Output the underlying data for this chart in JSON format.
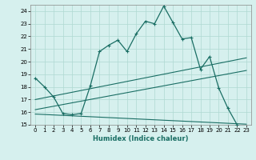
{
  "xlabel": "Humidex (Indice chaleur)",
  "background_color": "#d6f0ee",
  "grid_color": "#afd8d2",
  "line_color": "#1a6e64",
  "xlim": [
    -0.5,
    23.5
  ],
  "ylim": [
    15,
    24.5
  ],
  "yticks": [
    15,
    16,
    17,
    18,
    19,
    20,
    21,
    22,
    23,
    24
  ],
  "xticks": [
    0,
    1,
    2,
    3,
    4,
    5,
    6,
    7,
    8,
    9,
    10,
    11,
    12,
    13,
    14,
    15,
    16,
    17,
    18,
    19,
    20,
    21,
    22,
    23
  ],
  "main_x": [
    0,
    1,
    2,
    3,
    4,
    5,
    6,
    7,
    8,
    9,
    10,
    11,
    12,
    13,
    14,
    15,
    16,
    17,
    18,
    19,
    20,
    21,
    22
  ],
  "main_y": [
    18.7,
    18.0,
    17.2,
    15.9,
    15.8,
    15.9,
    18.1,
    20.8,
    21.3,
    21.7,
    20.8,
    22.2,
    23.2,
    23.0,
    24.4,
    23.1,
    21.8,
    21.9,
    19.4,
    20.4,
    17.9,
    16.3,
    15.0
  ],
  "trend1_x": [
    0,
    23
  ],
  "trend1_y": [
    17.0,
    20.3
  ],
  "trend2_x": [
    0,
    23
  ],
  "trend2_y": [
    16.2,
    19.3
  ],
  "trend3_x": [
    0,
    23
  ],
  "trend3_y": [
    15.85,
    15.05
  ]
}
